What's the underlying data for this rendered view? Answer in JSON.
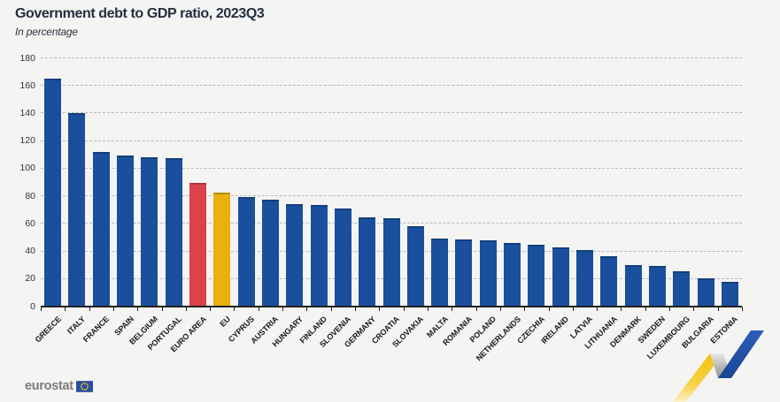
{
  "header": {
    "title": "Government debt to GDP ratio, 2023Q3",
    "subtitle": "In percentage"
  },
  "footer": {
    "brand": "eurostat"
  },
  "colors": {
    "background": "#f4f4f2",
    "bar_default": "#1a4f9d",
    "bar_euro_area": "#db4249",
    "bar_eu": "#e9b00e",
    "gridline": "#b9b9b9",
    "axis_line": "#212121",
    "title_text": "#232e40",
    "brand_gray": "#7d7d7d",
    "flag_blue": "#274fa2",
    "flag_star_yellow": "#ffcc00"
  },
  "chart_data": {
    "type": "bar",
    "title": "Government debt to GDP ratio, 2023Q3",
    "subtitle": "In percentage",
    "xlabel": "",
    "ylabel": "",
    "ylim": [
      0,
      180
    ],
    "yticks": [
      0,
      20,
      40,
      60,
      80,
      100,
      120,
      140,
      160,
      180
    ],
    "grid": "horizontal-dashed",
    "legend": "none",
    "categories": [
      "GREECE",
      "ITALY",
      "FRANCE",
      "SPAIN",
      "BELGIUM",
      "PORTUGAL",
      "EURO AREA",
      "EU",
      "CYPRUS",
      "AUSTRIA",
      "HUNGARY",
      "FINLAND",
      "SLOVENIA",
      "GERMANY",
      "CROATIA",
      "SLOVAKIA",
      "MALTA",
      "ROMANIA",
      "POLAND",
      "NETHERLANDS",
      "CZECHIA",
      "IRELAND",
      "LATVIA",
      "LITHUANIA",
      "DENMARK",
      "SWEDEN",
      "LUXEMBOURG",
      "BULGARIA",
      "ESTONIA"
    ],
    "values": [
      165.5,
      140.6,
      111.9,
      109.8,
      108.2,
      107.5,
      89.9,
      82.6,
      79.2,
      77.7,
      74.5,
      73.8,
      71.0,
      64.8,
      63.9,
      58.2,
      49.5,
      48.5,
      48.0,
      46.0,
      44.6,
      43.0,
      41.3,
      36.8,
      30.1,
      29.5,
      25.6,
      20.5,
      18.0
    ],
    "default_bar_color": "#1a4f9d",
    "highlights": {
      "EURO AREA": "#db4249",
      "EU": "#e9b00e"
    }
  }
}
